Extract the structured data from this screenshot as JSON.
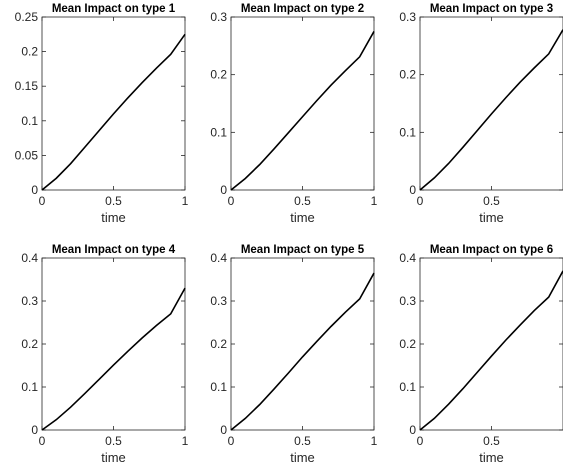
{
  "chart_data": [
    {
      "type": "line",
      "title": "Mean Impact on type 1",
      "xlabel": "time",
      "ylabel": "",
      "xlim": [
        0,
        1
      ],
      "ylim": [
        0,
        0.25
      ],
      "xticks": [
        "0",
        "0.5",
        "1"
      ],
      "yticks": [
        "0",
        "0.05",
        "0.1",
        "0.15",
        "0.2",
        "0.25"
      ],
      "x": [
        0,
        0.1,
        0.2,
        0.3,
        0.4,
        0.5,
        0.6,
        0.7,
        0.8,
        0.9,
        1.0
      ],
      "series": [
        {
          "values": [
            0,
            0.017,
            0.038,
            0.062,
            0.086,
            0.11,
            0.133,
            0.155,
            0.176,
            0.196,
            0.225
          ]
        }
      ],
      "grid": false
    },
    {
      "type": "line",
      "title": "Mean Impact on type 2",
      "xlabel": "time",
      "ylabel": "",
      "xlim": [
        0,
        1
      ],
      "ylim": [
        0,
        0.3
      ],
      "xticks": [
        "0",
        "0.5",
        "1"
      ],
      "yticks": [
        "0",
        "0.1",
        "0.2",
        "0.3"
      ],
      "x": [
        0,
        0.1,
        0.2,
        0.3,
        0.4,
        0.5,
        0.6,
        0.7,
        0.8,
        0.9,
        1.0
      ],
      "series": [
        {
          "values": [
            0,
            0.02,
            0.044,
            0.071,
            0.099,
            0.127,
            0.155,
            0.182,
            0.207,
            0.231,
            0.275
          ]
        }
      ],
      "grid": false
    },
    {
      "type": "line",
      "title": "Mean Impact on type 3",
      "xlabel": "time",
      "ylabel": "",
      "xlim": [
        0,
        1
      ],
      "ylim": [
        0,
        0.3
      ],
      "xticks": [
        "0",
        "0.5"
      ],
      "yticks": [
        "0",
        "0.1",
        "0.2",
        "0.3"
      ],
      "x": [
        0,
        0.1,
        0.2,
        0.3,
        0.4,
        0.5,
        0.6,
        0.7,
        0.8,
        0.9,
        1.0
      ],
      "series": [
        {
          "values": [
            0,
            0.021,
            0.046,
            0.074,
            0.103,
            0.132,
            0.16,
            0.187,
            0.212,
            0.236,
            0.278
          ]
        }
      ],
      "grid": false
    },
    {
      "type": "line",
      "title": "Mean Impact on type 4",
      "xlabel": "time",
      "ylabel": "",
      "xlim": [
        0,
        1
      ],
      "ylim": [
        0,
        0.4
      ],
      "xticks": [
        "0",
        "0.5",
        "1"
      ],
      "yticks": [
        "0",
        "0.1",
        "0.2",
        "0.3",
        "0.4"
      ],
      "x": [
        0,
        0.1,
        0.2,
        0.3,
        0.4,
        0.5,
        0.6,
        0.7,
        0.8,
        0.9,
        1.0
      ],
      "series": [
        {
          "values": [
            0,
            0.024,
            0.053,
            0.085,
            0.118,
            0.151,
            0.183,
            0.214,
            0.243,
            0.27,
            0.33
          ]
        }
      ],
      "grid": false
    },
    {
      "type": "line",
      "title": "Mean Impact on type 5",
      "xlabel": "time",
      "ylabel": "",
      "xlim": [
        0,
        1
      ],
      "ylim": [
        0,
        0.4
      ],
      "xticks": [
        "0",
        "0.5",
        "1"
      ],
      "yticks": [
        "0",
        "0.1",
        "0.2",
        "0.3",
        "0.4"
      ],
      "x": [
        0,
        0.1,
        0.2,
        0.3,
        0.4,
        0.5,
        0.6,
        0.7,
        0.8,
        0.9,
        1.0
      ],
      "series": [
        {
          "values": [
            0,
            0.027,
            0.059,
            0.095,
            0.132,
            0.17,
            0.206,
            0.241,
            0.274,
            0.305,
            0.365
          ]
        }
      ],
      "grid": false
    },
    {
      "type": "line",
      "title": "Mean Impact on type 6",
      "xlabel": "time",
      "ylabel": "",
      "xlim": [
        0,
        1
      ],
      "ylim": [
        0,
        0.4
      ],
      "xticks": [
        "0",
        "0.5"
      ],
      "yticks": [
        "0",
        "0.1",
        "0.2",
        "0.3",
        "0.4"
      ],
      "x": [
        0,
        0.1,
        0.2,
        0.3,
        0.4,
        0.5,
        0.6,
        0.7,
        0.8,
        0.9,
        1.0
      ],
      "series": [
        {
          "values": [
            0,
            0.027,
            0.06,
            0.096,
            0.134,
            0.172,
            0.209,
            0.244,
            0.278,
            0.309,
            0.37
          ]
        }
      ],
      "grid": false
    }
  ],
  "colors": {
    "line": "#000000",
    "axes": "#262626",
    "background": "#ffffff"
  }
}
